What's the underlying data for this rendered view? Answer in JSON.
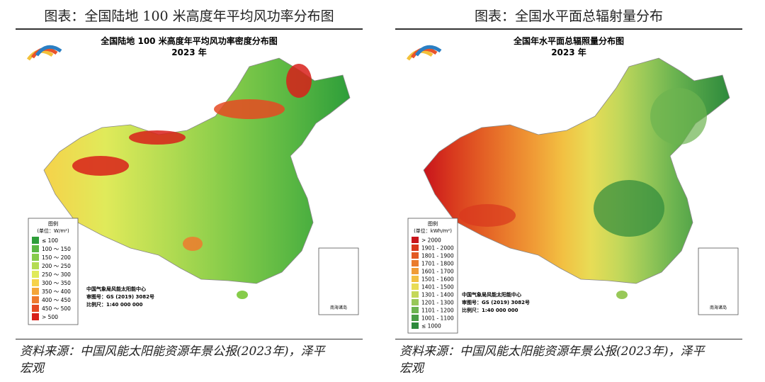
{
  "figures": [
    {
      "title": "图表：全国陆地 100 米高度年平均风功率分布图",
      "map_title": "全国陆地 100 米高度年平均风功率密度分布图",
      "map_year": "2023 年",
      "legend_title": "图例",
      "legend_unit": "(单位：W/m²)",
      "legend": [
        {
          "label": "≤ 100",
          "color": "#2e9e3a"
        },
        {
          "label": "100 ～ 150",
          "color": "#5bb843"
        },
        {
          "label": "150 ～ 200",
          "color": "#86cc4a"
        },
        {
          "label": "200 ～ 250",
          "color": "#b4dc52"
        },
        {
          "label": "250 ～ 300",
          "color": "#e0ea5a"
        },
        {
          "label": "300 ～ 350",
          "color": "#f6d24a"
        },
        {
          "label": "350 ～ 400",
          "color": "#f4a63a"
        },
        {
          "label": "400 ～ 450",
          "color": "#ee7a2e"
        },
        {
          "label": "450 ～ 500",
          "color": "#e54a22"
        },
        {
          "label": "> 500",
          "color": "#d8201a"
        }
      ],
      "credits": [
        "中国气象局风能太阳能中心",
        "审图号：GS (2019) 3082号",
        "比例尺：1:40 000 000"
      ],
      "inset_label": "南海诸岛",
      "source": "资料来源：中国风能太阳能资源年景公报(2023年)，泽平宏观"
    },
    {
      "title": "图表：全国水平面总辐射量分布",
      "map_title": "全国年水平面总辐照量分布图",
      "map_year": "2023 年",
      "legend_title": "图例",
      "legend_unit": "(单位：kWh/m²)",
      "legend": [
        {
          "label": "> 2000",
          "color": "#c8141c"
        },
        {
          "label": "1901 - 2000",
          "color": "#d8381e"
        },
        {
          "label": "1801 - 1900",
          "color": "#e25a24"
        },
        {
          "label": "1701 - 1800",
          "color": "#ea7c2c"
        },
        {
          "label": "1601 - 1700",
          "color": "#f09c36"
        },
        {
          "label": "1501 - 1600",
          "color": "#f2c042"
        },
        {
          "label": "1401 - 1500",
          "color": "#e8dc56"
        },
        {
          "label": "1301 - 1400",
          "color": "#c4d85a"
        },
        {
          "label": "1201 - 1300",
          "color": "#98c858"
        },
        {
          "label": "1101 - 1200",
          "color": "#6cb450"
        },
        {
          "label": "1001 - 1100",
          "color": "#4a9e46"
        },
        {
          "label": "≤ 1000",
          "color": "#2e8a3c"
        }
      ],
      "credits": [
        "中国气象局风能太阳能中心",
        "审图号：GS (2019) 3082号",
        "比例尺：1:40 000 000"
      ],
      "inset_label": "南海诸岛",
      "source": "资料来源：中国风能太阳能资源年景公报(2023年)，泽平宏观"
    }
  ]
}
